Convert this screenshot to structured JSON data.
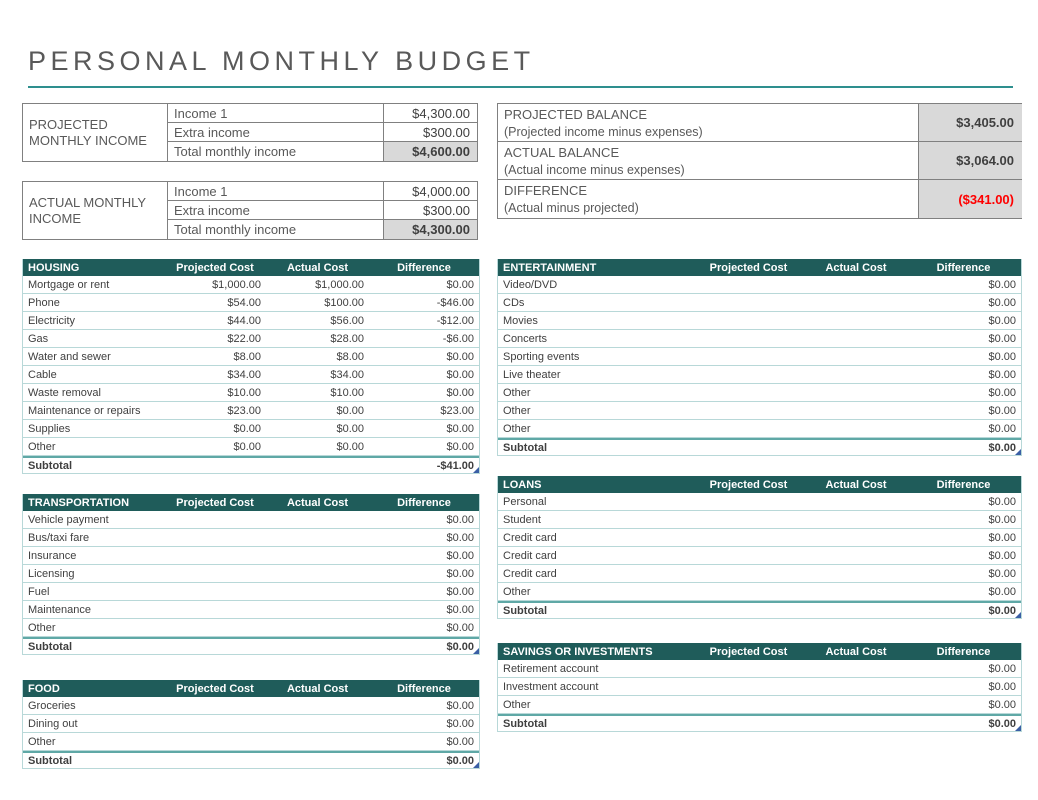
{
  "page": {
    "title": "PERSONAL MONTHLY BUDGET"
  },
  "colors": {
    "table_header_bg": "#1f5c5a",
    "accent_teal": "#2e8f8e",
    "row_border_teal": "#b8d8d8",
    "subtotal_border_teal": "#5fa8a6",
    "total_cell_gray": "#d9d9d9",
    "negative_red": "#ff0000"
  },
  "column_headers": {
    "projected": "Projected Cost",
    "actual": "Actual Cost",
    "difference": "Difference"
  },
  "income": {
    "projected": {
      "label": "PROJECTED MONTHLY INCOME",
      "rows": [
        {
          "label": "Income 1",
          "value": "$4,300.00"
        },
        {
          "label": "Extra income",
          "value": "$300.00"
        },
        {
          "label": "Total monthly income",
          "value": "$4,600.00"
        }
      ]
    },
    "actual": {
      "label": "ACTUAL MONTHLY INCOME",
      "rows": [
        {
          "label": "Income 1",
          "value": "$4,000.00"
        },
        {
          "label": "Extra income",
          "value": "$300.00"
        },
        {
          "label": "Total monthly income",
          "value": "$4,300.00"
        }
      ]
    }
  },
  "balance": {
    "rows": [
      {
        "title": "PROJECTED BALANCE",
        "subtitle": "(Projected income minus expenses)",
        "value": "$3,405.00",
        "negative": false
      },
      {
        "title": "ACTUAL BALANCE",
        "subtitle": "(Actual income minus expenses)",
        "value": "$3,064.00",
        "negative": false
      },
      {
        "title": "DIFFERENCE",
        "subtitle": "(Actual minus projected)",
        "value": "($341.00)",
        "negative": true
      }
    ]
  },
  "expense_tables": [
    {
      "id": "housing",
      "title": "HOUSING",
      "rows": [
        {
          "label": "Mortgage or rent",
          "projected": "$1,000.00",
          "actual": "$1,000.00",
          "difference": "$0.00"
        },
        {
          "label": "Phone",
          "projected": "$54.00",
          "actual": "$100.00",
          "difference": "-$46.00"
        },
        {
          "label": "Electricity",
          "projected": "$44.00",
          "actual": "$56.00",
          "difference": "-$12.00"
        },
        {
          "label": "Gas",
          "projected": "$22.00",
          "actual": "$28.00",
          "difference": "-$6.00"
        },
        {
          "label": "Water and sewer",
          "projected": "$8.00",
          "actual": "$8.00",
          "difference": "$0.00"
        },
        {
          "label": "Cable",
          "projected": "$34.00",
          "actual": "$34.00",
          "difference": "$0.00"
        },
        {
          "label": "Waste removal",
          "projected": "$10.00",
          "actual": "$10.00",
          "difference": "$0.00"
        },
        {
          "label": "Maintenance or repairs",
          "projected": "$23.00",
          "actual": "$0.00",
          "difference": "$23.00"
        },
        {
          "label": "Supplies",
          "projected": "$0.00",
          "actual": "$0.00",
          "difference": "$0.00"
        },
        {
          "label": "Other",
          "projected": "$0.00",
          "actual": "$0.00",
          "difference": "$0.00"
        }
      ],
      "subtotal": {
        "label": "Subtotal",
        "projected": "",
        "actual": "",
        "difference": "-$41.00"
      }
    },
    {
      "id": "transportation",
      "title": "TRANSPORTATION",
      "rows": [
        {
          "label": "Vehicle payment",
          "projected": "",
          "actual": "",
          "difference": "$0.00"
        },
        {
          "label": "Bus/taxi fare",
          "projected": "",
          "actual": "",
          "difference": "$0.00"
        },
        {
          "label": "Insurance",
          "projected": "",
          "actual": "",
          "difference": "$0.00"
        },
        {
          "label": "Licensing",
          "projected": "",
          "actual": "",
          "difference": "$0.00"
        },
        {
          "label": "Fuel",
          "projected": "",
          "actual": "",
          "difference": "$0.00"
        },
        {
          "label": "Maintenance",
          "projected": "",
          "actual": "",
          "difference": "$0.00"
        },
        {
          "label": "Other",
          "projected": "",
          "actual": "",
          "difference": "$0.00"
        }
      ],
      "subtotal": {
        "label": "Subtotal",
        "projected": "",
        "actual": "",
        "difference": "$0.00"
      }
    },
    {
      "id": "food",
      "title": "FOOD",
      "rows": [
        {
          "label": "Groceries",
          "projected": "",
          "actual": "",
          "difference": "$0.00"
        },
        {
          "label": "Dining out",
          "projected": "",
          "actual": "",
          "difference": "$0.00"
        },
        {
          "label": "Other",
          "projected": "",
          "actual": "",
          "difference": "$0.00"
        }
      ],
      "subtotal": {
        "label": "Subtotal",
        "projected": "",
        "actual": "",
        "difference": "$0.00"
      }
    },
    {
      "id": "entertainment",
      "title": "ENTERTAINMENT",
      "rows": [
        {
          "label": "Video/DVD",
          "projected": "",
          "actual": "",
          "difference": "$0.00"
        },
        {
          "label": "CDs",
          "projected": "",
          "actual": "",
          "difference": "$0.00"
        },
        {
          "label": "Movies",
          "projected": "",
          "actual": "",
          "difference": "$0.00"
        },
        {
          "label": "Concerts",
          "projected": "",
          "actual": "",
          "difference": "$0.00"
        },
        {
          "label": "Sporting events",
          "projected": "",
          "actual": "",
          "difference": "$0.00"
        },
        {
          "label": "Live theater",
          "projected": "",
          "actual": "",
          "difference": "$0.00"
        },
        {
          "label": "Other",
          "projected": "",
          "actual": "",
          "difference": "$0.00"
        },
        {
          "label": "Other",
          "projected": "",
          "actual": "",
          "difference": "$0.00"
        },
        {
          "label": "Other",
          "projected": "",
          "actual": "",
          "difference": "$0.00"
        }
      ],
      "subtotal": {
        "label": "Subtotal",
        "projected": "",
        "actual": "",
        "difference": "$0.00"
      }
    },
    {
      "id": "loans",
      "title": "LOANS",
      "rows": [
        {
          "label": "Personal",
          "projected": "",
          "actual": "",
          "difference": "$0.00"
        },
        {
          "label": "Student",
          "projected": "",
          "actual": "",
          "difference": "$0.00"
        },
        {
          "label": "Credit card",
          "projected": "",
          "actual": "",
          "difference": "$0.00"
        },
        {
          "label": "Credit card",
          "projected": "",
          "actual": "",
          "difference": "$0.00"
        },
        {
          "label": "Credit card",
          "projected": "",
          "actual": "",
          "difference": "$0.00"
        },
        {
          "label": "Other",
          "projected": "",
          "actual": "",
          "difference": "$0.00"
        }
      ],
      "subtotal": {
        "label": "Subtotal",
        "projected": "",
        "actual": "",
        "difference": "$0.00"
      }
    },
    {
      "id": "savings",
      "title": "SAVINGS OR INVESTMENTS",
      "rows": [
        {
          "label": "Retirement account",
          "projected": "",
          "actual": "",
          "difference": "$0.00"
        },
        {
          "label": "Investment account",
          "projected": "",
          "actual": "",
          "difference": "$0.00"
        },
        {
          "label": "Other",
          "projected": "",
          "actual": "",
          "difference": "$0.00"
        }
      ],
      "subtotal": {
        "label": "Subtotal",
        "projected": "",
        "actual": "",
        "difference": "$0.00"
      }
    }
  ]
}
